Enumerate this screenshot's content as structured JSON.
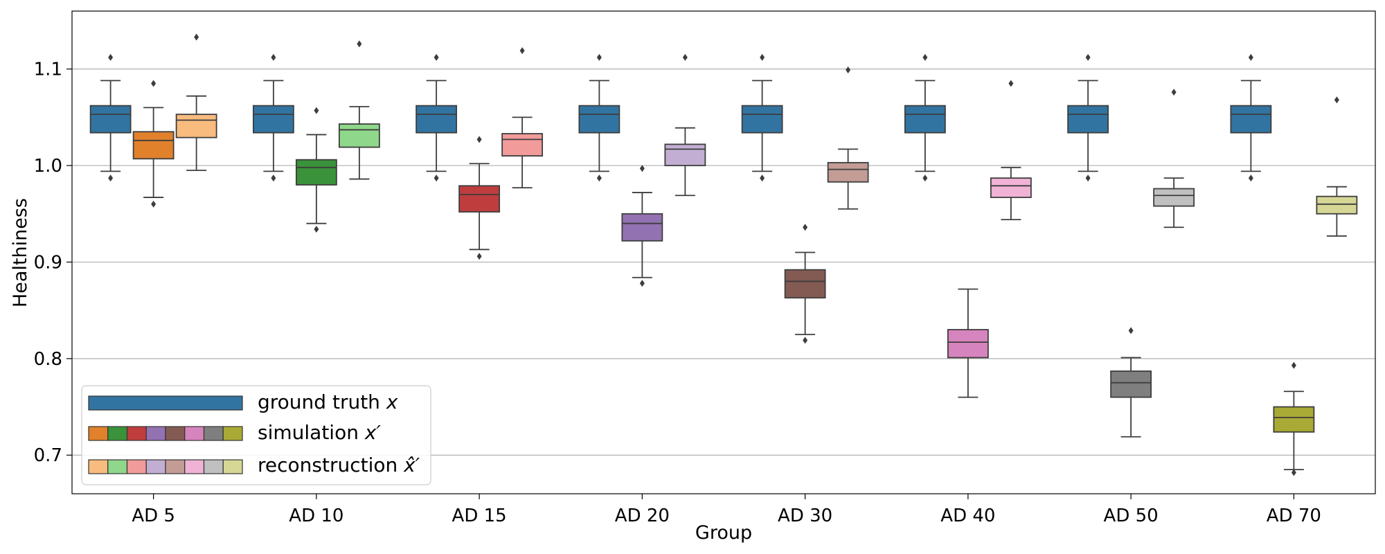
{
  "chart_data": {
    "type": "box",
    "xlabel": "Group",
    "ylabel": "Healthiness",
    "ylim": [
      0.66,
      1.16
    ],
    "yticks": [
      "0.7",
      "0.8",
      "0.9",
      "1.0",
      "1.1"
    ],
    "grid": "horizontal",
    "categories": [
      "AD 5",
      "AD 10",
      "AD 15",
      "AD 20",
      "AD 30",
      "AD 40",
      "AD 50",
      "AD 70"
    ],
    "legend": {
      "position": "bottom-left",
      "entries": [
        {
          "label": "ground truth ",
          "math": "x"
        },
        {
          "label": "simulation ",
          "math": "x′"
        },
        {
          "label": "reconstruction ",
          "math": "x̂′"
        }
      ]
    },
    "series": [
      {
        "name": "ground truth x",
        "colors": [
          "#3274a1",
          "#3274a1",
          "#3274a1",
          "#3274a1",
          "#3274a1",
          "#3274a1",
          "#3274a1",
          "#3274a1"
        ],
        "boxes": [
          {
            "whislo": 0.994,
            "q1": 1.034,
            "med": 1.053,
            "q3": 1.062,
            "whishi": 1.088,
            "fliers": [
              0.987,
              1.112
            ]
          },
          {
            "whislo": 0.994,
            "q1": 1.034,
            "med": 1.053,
            "q3": 1.062,
            "whishi": 1.088,
            "fliers": [
              0.987,
              1.112
            ]
          },
          {
            "whislo": 0.994,
            "q1": 1.034,
            "med": 1.053,
            "q3": 1.062,
            "whishi": 1.088,
            "fliers": [
              0.987,
              1.112
            ]
          },
          {
            "whislo": 0.994,
            "q1": 1.034,
            "med": 1.053,
            "q3": 1.062,
            "whishi": 1.088,
            "fliers": [
              0.987,
              1.112
            ]
          },
          {
            "whislo": 0.994,
            "q1": 1.034,
            "med": 1.053,
            "q3": 1.062,
            "whishi": 1.088,
            "fliers": [
              0.987,
              1.112
            ]
          },
          {
            "whislo": 0.994,
            "q1": 1.034,
            "med": 1.053,
            "q3": 1.062,
            "whishi": 1.088,
            "fliers": [
              0.987,
              1.112
            ]
          },
          {
            "whislo": 0.994,
            "q1": 1.034,
            "med": 1.053,
            "q3": 1.062,
            "whishi": 1.088,
            "fliers": [
              0.987,
              1.112
            ]
          },
          {
            "whislo": 0.994,
            "q1": 1.034,
            "med": 1.053,
            "q3": 1.062,
            "whishi": 1.088,
            "fliers": [
              0.987,
              1.112
            ]
          }
        ]
      },
      {
        "name": "simulation x'",
        "colors": [
          "#e1812c",
          "#3a923a",
          "#c03d3e",
          "#9372b2",
          "#845b53",
          "#d684bd",
          "#7f7f7f",
          "#a9aa35"
        ],
        "boxes": [
          {
            "whislo": 0.967,
            "q1": 1.007,
            "med": 1.026,
            "q3": 1.035,
            "whishi": 1.06,
            "fliers": [
              0.96,
              1.085
            ]
          },
          {
            "whislo": 0.94,
            "q1": 0.98,
            "med": 0.998,
            "q3": 1.006,
            "whishi": 1.032,
            "fliers": [
              0.934,
              1.057
            ]
          },
          {
            "whislo": 0.913,
            "q1": 0.952,
            "med": 0.97,
            "q3": 0.979,
            "whishi": 1.002,
            "fliers": [
              0.906,
              1.027
            ]
          },
          {
            "whislo": 0.884,
            "q1": 0.922,
            "med": 0.94,
            "q3": 0.95,
            "whishi": 0.972,
            "fliers": [
              0.878,
              0.997
            ]
          },
          {
            "whislo": 0.825,
            "q1": 0.863,
            "med": 0.88,
            "q3": 0.892,
            "whishi": 0.91,
            "fliers": [
              0.819,
              0.936
            ]
          },
          {
            "whislo": 0.76,
            "q1": 0.801,
            "med": 0.817,
            "q3": 0.83,
            "whishi": 0.872,
            "fliers": []
          },
          {
            "whislo": 0.719,
            "q1": 0.76,
            "med": 0.775,
            "q3": 0.787,
            "whishi": 0.801,
            "fliers": [
              0.829
            ]
          },
          {
            "whislo": 0.685,
            "q1": 0.724,
            "med": 0.739,
            "q3": 0.75,
            "whishi": 0.766,
            "fliers": [
              0.682,
              0.793
            ]
          }
        ]
      },
      {
        "name": "reconstruction x-hat'",
        "colors": [
          "#f9bc7f",
          "#8fd78a",
          "#f19b9a",
          "#c2aed3",
          "#c29c95",
          "#f0b3d6",
          "#c0c0c0",
          "#d6d795"
        ],
        "boxes": [
          {
            "whislo": 0.995,
            "q1": 1.029,
            "med": 1.047,
            "q3": 1.053,
            "whishi": 1.072,
            "fliers": [
              1.133
            ]
          },
          {
            "whislo": 0.986,
            "q1": 1.019,
            "med": 1.037,
            "q3": 1.043,
            "whishi": 1.061,
            "fliers": [
              1.126
            ]
          },
          {
            "whislo": 0.977,
            "q1": 1.01,
            "med": 1.027,
            "q3": 1.033,
            "whishi": 1.05,
            "fliers": [
              1.119
            ]
          },
          {
            "whislo": 0.969,
            "q1": 1.0,
            "med": 1.017,
            "q3": 1.022,
            "whishi": 1.039,
            "fliers": [
              1.112
            ]
          },
          {
            "whislo": 0.955,
            "q1": 0.983,
            "med": 0.996,
            "q3": 1.003,
            "whishi": 1.017,
            "fliers": [
              1.099
            ]
          },
          {
            "whislo": 0.944,
            "q1": 0.967,
            "med": 0.979,
            "q3": 0.987,
            "whishi": 0.998,
            "fliers": [
              1.085
            ]
          },
          {
            "whislo": 0.936,
            "q1": 0.958,
            "med": 0.969,
            "q3": 0.976,
            "whishi": 0.987,
            "fliers": [
              1.076
            ]
          },
          {
            "whislo": 0.927,
            "q1": 0.95,
            "med": 0.96,
            "q3": 0.968,
            "whishi": 0.978,
            "fliers": [
              1.068
            ]
          }
        ]
      }
    ]
  }
}
